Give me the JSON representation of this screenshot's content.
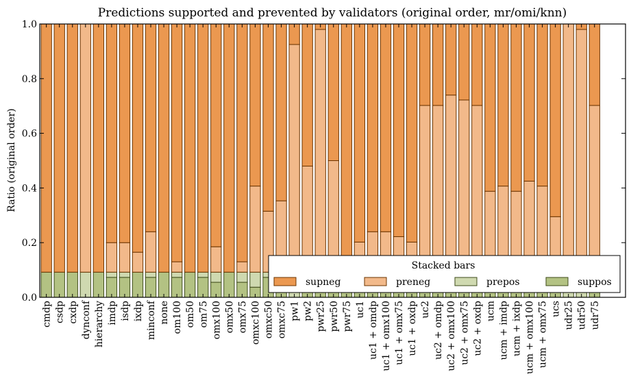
{
  "chart_data": {
    "type": "bar",
    "stacked": true,
    "title": "Predictions supported and prevented by validators (original order, mr/omi/knn)",
    "xlabel": "",
    "ylabel": "Ratio (original order)",
    "ylim": [
      0,
      1.0
    ],
    "yticks": [
      "0.0",
      "0.2",
      "0.4",
      "0.6",
      "0.8",
      "1.0"
    ],
    "grid": false,
    "legend": {
      "title": "Stacked bars",
      "placement": "lower-right",
      "entries": [
        "supneg",
        "preneg",
        "prepos",
        "suppos"
      ]
    },
    "colors": {
      "supneg": "#eb9850",
      "preneg": "#f2b98a",
      "prepos": "#cfd9b0",
      "suppos": "#b3c283",
      "edge_neg": "#6b3400",
      "edge_pos": "#3d4a1a"
    },
    "categories": [
      "cmdp",
      "csdp",
      "cxdp",
      "dynconf",
      "hierarchy",
      "imdp",
      "isdp",
      "ixdp",
      "minconf",
      "none",
      "om100",
      "om50",
      "om75",
      "omx100",
      "omx50",
      "omx75",
      "omxc100",
      "omxc50",
      "omxc75",
      "pw1",
      "pw2",
      "pwr25",
      "pwr50",
      "pwr75",
      "uc1",
      "uc1 + omdp",
      "uc1 + omx100",
      "uc1 + omx75",
      "uc1 + oxdp",
      "uc2",
      "uc2 + omdp",
      "uc2 + omx100",
      "uc2 + omx75",
      "uc2 + oxdp",
      "ucm",
      "ucm + imdp",
      "ucm + ixdp",
      "ucm + omx100",
      "ucm + omx75",
      "ucs",
      "udr25",
      "udr50",
      "udr75"
    ],
    "series": [
      {
        "name": "suppos",
        "values": [
          0.092,
          0.092,
          0.092,
          0.0,
          0.092,
          0.073,
          0.073,
          0.092,
          0.073,
          0.092,
          0.073,
          0.092,
          0.073,
          0.055,
          0.092,
          0.055,
          0.037,
          0.073,
          0.073,
          0.0,
          0.092,
          0.092,
          0.092,
          0.092,
          0.092,
          0.092,
          0.092,
          0.092,
          0.092,
          0.092,
          0.092,
          0.092,
          0.092,
          0.092,
          0.092,
          0.092,
          0.092,
          0.092,
          0.092,
          0.092,
          0.0,
          0.0,
          0.092
        ]
      },
      {
        "name": "prepos",
        "values": [
          0.0,
          0.0,
          0.0,
          0.092,
          0.0,
          0.019,
          0.019,
          0.0,
          0.019,
          0.0,
          0.019,
          0.0,
          0.019,
          0.037,
          0.0,
          0.037,
          0.055,
          0.019,
          0.019,
          0.092,
          0.0,
          0.0,
          0.0,
          0.0,
          0.0,
          0.0,
          0.0,
          0.0,
          0.0,
          0.0,
          0.0,
          0.0,
          0.0,
          0.0,
          0.0,
          0.0,
          0.0,
          0.0,
          0.0,
          0.0,
          0.092,
          0.092,
          0.0
        ]
      },
      {
        "name": "preneg",
        "values": [
          0.0,
          0.0,
          0.0,
          0.908,
          0.0,
          0.108,
          0.108,
          0.073,
          0.148,
          0.0,
          0.038,
          0.0,
          0.0,
          0.093,
          0.0,
          0.038,
          0.315,
          0.223,
          0.261,
          0.833,
          0.388,
          0.888,
          0.408,
          0.0,
          0.11,
          0.148,
          0.148,
          0.13,
          0.11,
          0.61,
          0.61,
          0.648,
          0.63,
          0.61,
          0.296,
          0.315,
          0.296,
          0.333,
          0.315,
          0.203,
          0.908,
          0.888,
          0.61
        ]
      },
      {
        "name": "supneg",
        "values": [
          0.908,
          0.908,
          0.908,
          0.0,
          0.908,
          0.8,
          0.8,
          0.835,
          0.76,
          0.908,
          0.87,
          0.908,
          0.908,
          0.815,
          0.908,
          0.87,
          0.593,
          0.685,
          0.647,
          0.075,
          0.52,
          0.02,
          0.5,
          0.908,
          0.798,
          0.76,
          0.76,
          0.778,
          0.798,
          0.298,
          0.298,
          0.26,
          0.278,
          0.298,
          0.612,
          0.593,
          0.612,
          0.575,
          0.593,
          0.705,
          0.0,
          0.02,
          0.298
        ]
      }
    ]
  }
}
